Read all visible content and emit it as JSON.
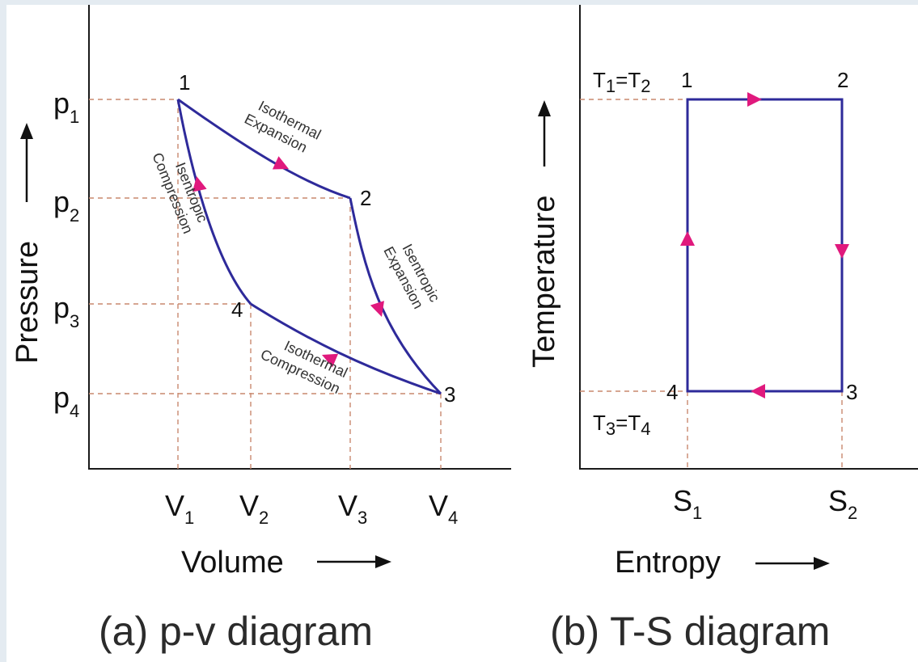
{
  "colors": {
    "background": "#ffffff",
    "page_border": "#e4ebf1",
    "curve": "#2e2a9a",
    "arrow": "#e0197d",
    "guide": "#c9896f",
    "text": "#111111"
  },
  "pv": {
    "y_title": "Pressure",
    "x_title": "Volume",
    "caption": "(a) p-v diagram",
    "p_labels": [
      {
        "main": "p",
        "sub": "1"
      },
      {
        "main": "p",
        "sub": "2"
      },
      {
        "main": "p",
        "sub": "3"
      },
      {
        "main": "p",
        "sub": "4"
      }
    ],
    "v_labels": [
      {
        "main": "V",
        "sub": "1"
      },
      {
        "main": "V",
        "sub": "2"
      },
      {
        "main": "V",
        "sub": "3"
      },
      {
        "main": "V",
        "sub": "4"
      }
    ],
    "points": [
      "1",
      "2",
      "3",
      "4"
    ],
    "processes": {
      "iso_exp": [
        "Isothermal",
        "Expansion"
      ],
      "isen_exp": [
        "Isentropic",
        "Expansion"
      ],
      "iso_comp": [
        "Isothermal",
        "Compression"
      ],
      "isen_comp": [
        "Isentropic",
        "Compression"
      ]
    }
  },
  "ts": {
    "y_title": "Temperature",
    "x_title": "Entropy",
    "caption": "(b) T-S diagram",
    "t_top": {
      "a": "T",
      "a_sub": "1",
      "eq": "=T",
      "b_sub": "2"
    },
    "t_bottom": {
      "a": "T",
      "a_sub": "3",
      "eq": "=T",
      "b_sub": "4"
    },
    "s_labels": [
      {
        "main": "S",
        "sub": "1"
      },
      {
        "main": "S",
        "sub": "2"
      }
    ],
    "points": [
      "1",
      "2",
      "3",
      "4"
    ]
  }
}
